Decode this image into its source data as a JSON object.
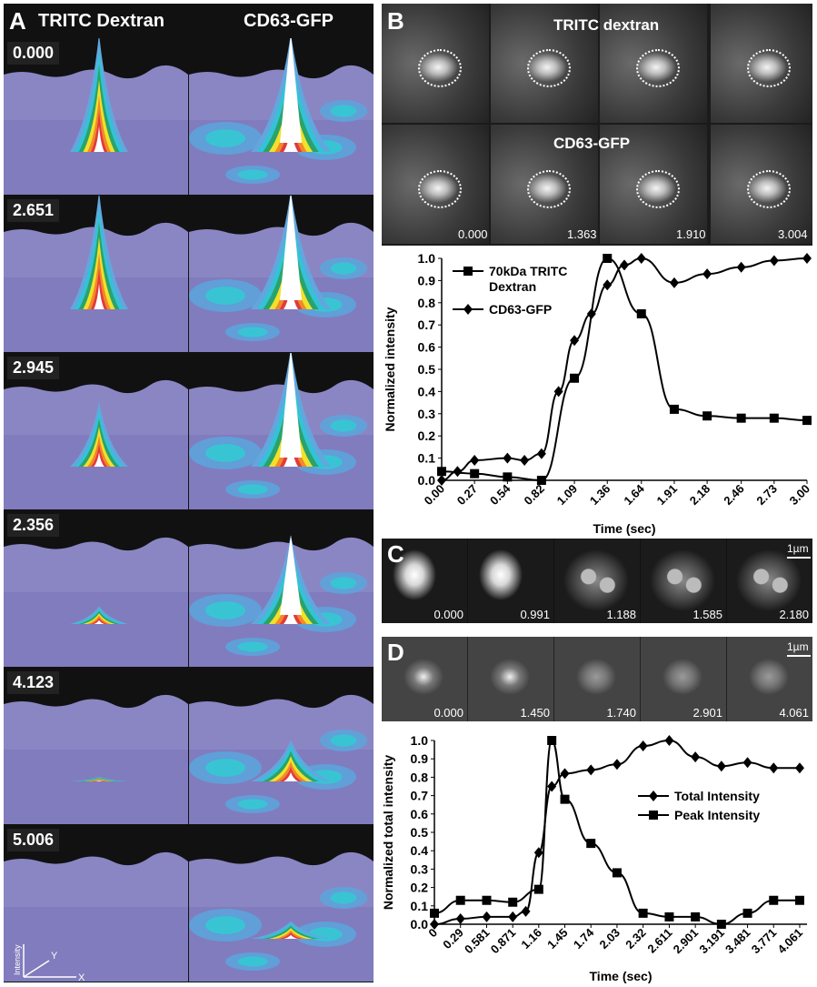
{
  "panelA": {
    "letter": "A",
    "col1": "TRITC Dextran",
    "col2": "CD63-GFP",
    "times": [
      "0.000",
      "2.651",
      "2.945",
      "2.356",
      "4.123",
      "5.006"
    ],
    "axes": {
      "z": "Intensity",
      "y": "Y",
      "x": "X"
    }
  },
  "panelB": {
    "letter": "B",
    "row1_title": "TRITC dextran",
    "row2_title": "CD63-GFP",
    "times": [
      "0.000",
      "1.363",
      "1.910",
      "3.004"
    ]
  },
  "panelC": {
    "letter": "C",
    "scale": "1µm",
    "times": [
      "0.000",
      "0.991",
      "1.188",
      "1.585",
      "2.180"
    ]
  },
  "panelD": {
    "letter": "D",
    "scale": "1µm",
    "times": [
      "0.000",
      "1.450",
      "1.740",
      "2.901",
      "4.061"
    ]
  },
  "chart_data": [
    {
      "type": "line",
      "xlabel": "Time (sec)",
      "ylabel": "Normalized intensity",
      "ylim": [
        0,
        1.0
      ],
      "x_ticks": [
        "0.00",
        "0.27",
        "0.54",
        "0.82",
        "1.09",
        "1.36",
        "1.64",
        "1.91",
        "2.18",
        "2.46",
        "2.73",
        "3.00"
      ],
      "y_ticks": [
        "0.0",
        "0.1",
        "0.2",
        "0.3",
        "0.4",
        "0.5",
        "0.6",
        "0.7",
        "0.8",
        "0.9",
        "1.0"
      ],
      "legend_position": "top-left",
      "series": [
        {
          "name": "70kDa TRITC Dextran",
          "marker": "square",
          "x": [
            0.0,
            0.27,
            0.54,
            0.82,
            1.09,
            1.36,
            1.64,
            1.91,
            2.18,
            2.46,
            2.73,
            3.0
          ],
          "values": [
            0.04,
            0.03,
            0.015,
            0.0,
            0.46,
            1.0,
            0.75,
            0.32,
            0.29,
            0.28,
            0.28,
            0.27
          ]
        },
        {
          "name": "CD63-GFP",
          "marker": "diamond",
          "x": [
            0.0,
            0.13,
            0.27,
            0.54,
            0.68,
            0.82,
            0.96,
            1.09,
            1.23,
            1.36,
            1.5,
            1.64,
            1.91,
            2.18,
            2.46,
            2.73,
            3.0
          ],
          "values": [
            0.0,
            0.04,
            0.09,
            0.1,
            0.09,
            0.12,
            0.4,
            0.63,
            0.75,
            0.88,
            0.97,
            1.0,
            0.89,
            0.93,
            0.96,
            0.99,
            1.0
          ]
        }
      ]
    },
    {
      "type": "line",
      "xlabel": "Time (sec)",
      "ylabel": "Normalized total intensity",
      "ylim": [
        0,
        1.0
      ],
      "x_ticks": [
        "0",
        "0.29",
        "0.581",
        "0.871",
        "1.16",
        "1.45",
        "1.74",
        "2.03",
        "2.32",
        "2.611",
        "2.901",
        "3.191",
        "3.481",
        "3.771",
        "4.061"
      ],
      "y_ticks": [
        "0.0",
        "0.1",
        "0.2",
        "0.3",
        "0.4",
        "0.5",
        "0.6",
        "0.7",
        "0.8",
        "0.9",
        "1.0"
      ],
      "legend_position": "center-right",
      "series": [
        {
          "name": "Total Intensity",
          "marker": "diamond",
          "x": [
            0,
            0.29,
            0.581,
            0.871,
            1.016,
            1.16,
            1.305,
            1.45,
            1.74,
            2.03,
            2.32,
            2.611,
            2.901,
            3.191,
            3.481,
            3.771,
            4.061
          ],
          "values": [
            0.0,
            0.03,
            0.04,
            0.04,
            0.07,
            0.39,
            0.75,
            0.82,
            0.84,
            0.87,
            0.97,
            1.0,
            0.91,
            0.86,
            0.88,
            0.85,
            0.85
          ]
        },
        {
          "name": "Peak Intensity",
          "marker": "square",
          "x": [
            0,
            0.29,
            0.581,
            0.871,
            1.16,
            1.305,
            1.45,
            1.74,
            2.03,
            2.32,
            2.611,
            2.901,
            3.191,
            3.481,
            3.771,
            4.061
          ],
          "values": [
            0.06,
            0.13,
            0.13,
            0.12,
            0.19,
            1.0,
            0.68,
            0.44,
            0.28,
            0.06,
            0.04,
            0.04,
            0.0,
            0.06,
            0.13,
            0.13
          ]
        }
      ]
    }
  ]
}
